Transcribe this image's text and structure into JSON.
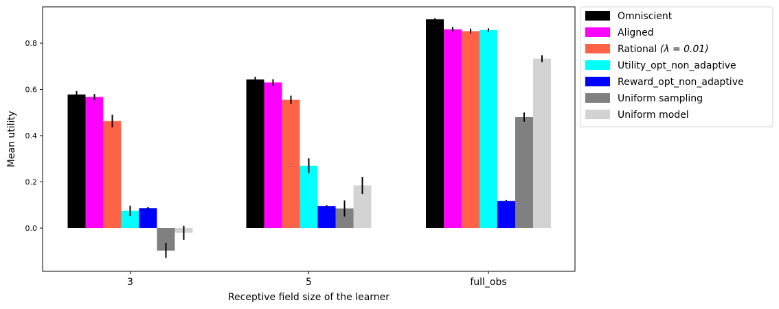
{
  "chart_data": {
    "type": "bar",
    "title": "",
    "xlabel": "Receptive field size of the learner",
    "ylabel": "Mean utility",
    "categories": [
      "3",
      "5",
      "full_obs"
    ],
    "ylim": [
      -0.18,
      0.96
    ],
    "yticks": [
      "0.0",
      "0.2",
      "0.4",
      "0.6",
      "0.8"
    ],
    "grid": false,
    "legend_placement": "outside right, top",
    "series": [
      {
        "name": "Omniscient",
        "color": "#000000",
        "values": [
          0.578,
          0.643,
          0.903
        ],
        "errors": [
          0.015,
          0.012,
          0.005
        ]
      },
      {
        "name": "Aligned",
        "color": "#ff00ff",
        "values": [
          0.567,
          0.63,
          0.86
        ],
        "errors": [
          0.013,
          0.014,
          0.01
        ]
      },
      {
        "name": "Rational ",
        "color": "#ff6347",
        "values": [
          0.463,
          0.555,
          0.852
        ],
        "errors": [
          0.027,
          0.018,
          0.01
        ]
      },
      {
        "name": "Utility_opt_non_adaptive",
        "color": "#00ffff",
        "values": [
          0.075,
          0.27,
          0.857
        ],
        "errors": [
          0.022,
          0.032,
          0.007
        ]
      },
      {
        "name": "Reward_opt_non_adaptive",
        "color": "#0000ff",
        "values": [
          0.086,
          0.095,
          0.118
        ],
        "errors": [
          0.006,
          0.005,
          0.004
        ]
      },
      {
        "name": "Uniform sampling",
        "color": "#808080",
        "values": [
          -0.097,
          0.085,
          0.48
        ],
        "errors": [
          0.032,
          0.035,
          0.02
        ]
      },
      {
        "name": "Uniform model",
        "color": "#d3d3d3",
        "values": [
          -0.02,
          0.185,
          0.733
        ],
        "errors": [
          0.03,
          0.037,
          0.015
        ]
      }
    ],
    "legend_rational_math": "(λ = 0.01)"
  }
}
